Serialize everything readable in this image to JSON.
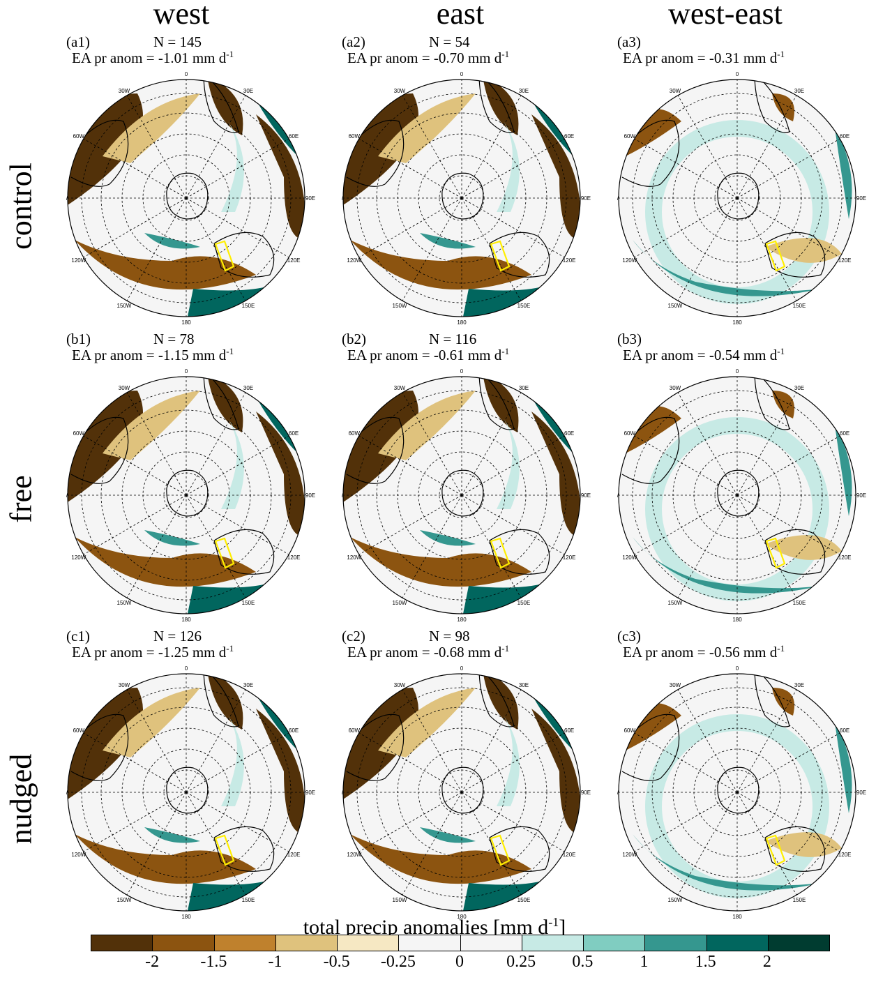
{
  "columns": [
    "west",
    "east",
    "west-east"
  ],
  "rows": [
    "control",
    "free",
    "nudged"
  ],
  "ea_prefix": "EA pr anom = ",
  "units": "mm d",
  "unit_sup": "-1",
  "lon_labels": [
    "0",
    "30E",
    "60E",
    "90E",
    "120E",
    "150E",
    "180",
    "150W",
    "120W",
    "90W",
    "60W",
    "30W"
  ],
  "panels": [
    {
      "id": "a1",
      "label": "(a1)",
      "n": "N = 145",
      "ea": "-1.01"
    },
    {
      "id": "a2",
      "label": "(a2)",
      "n": "N = 54",
      "ea": "-0.70"
    },
    {
      "id": "a3",
      "label": "(a3)",
      "n": "",
      "ea": "-0.31"
    },
    {
      "id": "b1",
      "label": "(b1)",
      "n": "N = 78",
      "ea": "-1.15"
    },
    {
      "id": "b2",
      "label": "(b2)",
      "n": "N = 116",
      "ea": "-0.61"
    },
    {
      "id": "b3",
      "label": "(b3)",
      "n": "",
      "ea": "-0.54"
    },
    {
      "id": "c1",
      "label": "(c1)",
      "n": "N = 126",
      "ea": "-1.25"
    },
    {
      "id": "c2",
      "label": "(c2)",
      "n": "N = 98",
      "ea": "-0.68"
    },
    {
      "id": "c3",
      "label": "(c3)",
      "n": "",
      "ea": "-0.56"
    }
  ],
  "colorbar": {
    "title": "total precip anomalies [mm d",
    "title_sup": "-1",
    "title_close": "]",
    "colors": [
      "#523109",
      "#8c5410",
      "#bf812d",
      "#dfc27d",
      "#f6e8c3",
      "#f5f5f5",
      "#f5f5f5",
      "#c7eae5",
      "#80cdc1",
      "#35978f",
      "#01665e",
      "#003c30"
    ],
    "ticks": [
      "-2",
      "-1.5",
      "-1",
      "-0.5",
      "-0.25",
      "0",
      "0.25",
      "0.5",
      "1",
      "1.5",
      "2"
    ]
  },
  "colors": {
    "brown": "#8c5410",
    "dark_brown": "#523109",
    "tan": "#dfc27d",
    "light_tan": "#f6e8c3",
    "teal": "#35978f",
    "dark_teal": "#01665e",
    "light_teal": "#c7eae5",
    "box": "#ffee00"
  }
}
